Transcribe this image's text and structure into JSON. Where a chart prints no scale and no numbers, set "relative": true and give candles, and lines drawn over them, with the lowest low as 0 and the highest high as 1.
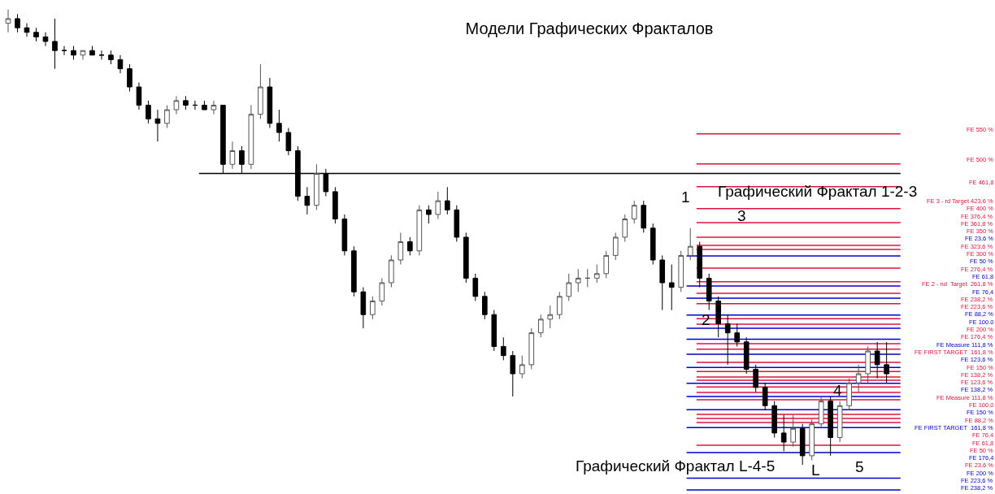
{
  "chart_data": {
    "type": "candlestick",
    "title": "Модели Графических Фракталов",
    "relative": true,
    "categories": [
      null,
      null,
      null,
      null,
      null,
      null,
      null,
      null,
      null,
      null,
      null,
      null,
      null,
      null,
      null,
      null,
      null,
      null,
      null,
      null,
      null,
      null,
      null,
      null,
      null,
      null,
      null,
      null,
      null,
      null,
      null,
      null,
      null,
      null,
      null,
      null,
      null,
      null,
      null,
      null,
      null,
      null,
      null,
      null,
      null,
      null,
      null,
      null,
      null,
      null,
      null,
      null,
      null,
      null,
      null,
      null,
      null,
      null,
      null,
      null,
      null,
      null,
      null,
      null,
      null,
      null,
      null,
      null,
      null,
      null,
      null,
      null,
      null,
      null,
      null,
      null,
      null,
      null,
      null,
      null,
      null,
      null,
      null,
      null,
      null,
      null,
      null,
      null,
      null,
      null,
      null,
      null,
      null,
      null,
      null
    ],
    "ohlc": [
      [
        0.97,
        1.0,
        0.95,
        0.98
      ],
      [
        0.98,
        0.99,
        0.95,
        0.96
      ],
      [
        0.96,
        0.97,
        0.94,
        0.95
      ],
      [
        0.95,
        0.96,
        0.93,
        0.94
      ],
      [
        0.94,
        0.95,
        0.92,
        0.93
      ],
      [
        0.93,
        0.98,
        0.87,
        0.91
      ],
      [
        0.91,
        0.92,
        0.9,
        0.91
      ],
      [
        0.91,
        0.92,
        0.89,
        0.9
      ],
      [
        0.9,
        0.91,
        0.89,
        0.91
      ],
      [
        0.91,
        0.92,
        0.9,
        0.9
      ],
      [
        0.9,
        0.91,
        0.89,
        0.9
      ],
      [
        0.9,
        0.91,
        0.88,
        0.89
      ],
      [
        0.89,
        0.9,
        0.86,
        0.87
      ],
      [
        0.87,
        0.88,
        0.82,
        0.83
      ],
      [
        0.83,
        0.84,
        0.78,
        0.79
      ],
      [
        0.79,
        0.8,
        0.75,
        0.76
      ],
      [
        0.76,
        0.78,
        0.71,
        0.75
      ],
      [
        0.75,
        0.79,
        0.74,
        0.78
      ],
      [
        0.78,
        0.81,
        0.77,
        0.8
      ],
      [
        0.8,
        0.81,
        0.78,
        0.79
      ],
      [
        0.79,
        0.8,
        0.78,
        0.79
      ],
      [
        0.79,
        0.8,
        0.78,
        0.78
      ],
      [
        0.78,
        0.8,
        0.77,
        0.79
      ],
      [
        0.79,
        0.79,
        0.64,
        0.66
      ],
      [
        0.66,
        0.71,
        0.65,
        0.69
      ],
      [
        0.69,
        0.7,
        0.64,
        0.66
      ],
      [
        0.66,
        0.79,
        0.65,
        0.77
      ],
      [
        0.77,
        0.88,
        0.76,
        0.83
      ],
      [
        0.83,
        0.85,
        0.74,
        0.75
      ],
      [
        0.75,
        0.78,
        0.71,
        0.73
      ],
      [
        0.73,
        0.74,
        0.68,
        0.69
      ],
      [
        0.69,
        0.7,
        0.58,
        0.59
      ],
      [
        0.59,
        0.61,
        0.55,
        0.57
      ],
      [
        0.57,
        0.66,
        0.56,
        0.64
      ],
      [
        0.64,
        0.65,
        0.59,
        0.6
      ],
      [
        0.6,
        0.61,
        0.53,
        0.54
      ],
      [
        0.54,
        0.55,
        0.46,
        0.47
      ],
      [
        0.47,
        0.48,
        0.37,
        0.38
      ],
      [
        0.38,
        0.39,
        0.3,
        0.33
      ],
      [
        0.33,
        0.37,
        0.32,
        0.36
      ],
      [
        0.36,
        0.41,
        0.35,
        0.4
      ],
      [
        0.4,
        0.46,
        0.39,
        0.45
      ],
      [
        0.45,
        0.51,
        0.44,
        0.49
      ],
      [
        0.49,
        0.5,
        0.46,
        0.47
      ],
      [
        0.47,
        0.57,
        0.46,
        0.56
      ],
      [
        0.56,
        0.57,
        0.53,
        0.55
      ],
      [
        0.55,
        0.6,
        0.54,
        0.58
      ],
      [
        0.58,
        0.61,
        0.55,
        0.56
      ],
      [
        0.56,
        0.57,
        0.49,
        0.5
      ],
      [
        0.5,
        0.51,
        0.4,
        0.41
      ],
      [
        0.41,
        0.42,
        0.36,
        0.37
      ],
      [
        0.37,
        0.38,
        0.32,
        0.33
      ],
      [
        0.33,
        0.34,
        0.25,
        0.26
      ],
      [
        0.26,
        0.28,
        0.23,
        0.24
      ],
      [
        0.24,
        0.25,
        0.15,
        0.2
      ],
      [
        0.2,
        0.24,
        0.19,
        0.22
      ],
      [
        0.22,
        0.3,
        0.21,
        0.29
      ],
      [
        0.29,
        0.33,
        0.28,
        0.32
      ],
      [
        0.32,
        0.35,
        0.3,
        0.33
      ],
      [
        0.33,
        0.38,
        0.32,
        0.37
      ],
      [
        0.37,
        0.42,
        0.36,
        0.4
      ],
      [
        0.4,
        0.43,
        0.38,
        0.41
      ],
      [
        0.41,
        0.43,
        0.39,
        0.41
      ],
      [
        0.41,
        0.44,
        0.4,
        0.42
      ],
      [
        0.42,
        0.47,
        0.41,
        0.46
      ],
      [
        0.46,
        0.51,
        0.45,
        0.5
      ],
      [
        0.5,
        0.55,
        0.49,
        0.54
      ],
      [
        0.54,
        0.58,
        0.53,
        0.57
      ],
      [
        0.57,
        0.58,
        0.51,
        0.52
      ],
      [
        0.52,
        0.53,
        0.44,
        0.45
      ],
      [
        0.45,
        0.46,
        0.34,
        0.4
      ],
      [
        0.4,
        0.44,
        0.34,
        0.39
      ],
      [
        0.39,
        0.47,
        0.38,
        0.46
      ],
      [
        0.46,
        0.52,
        0.45,
        0.48
      ],
      [
        0.48,
        0.49,
        0.39,
        0.41
      ],
      [
        0.41,
        0.42,
        0.34,
        0.36
      ],
      [
        0.36,
        0.37,
        0.28,
        0.31
      ],
      [
        0.31,
        0.33,
        0.22,
        0.29
      ],
      [
        0.29,
        0.31,
        0.26,
        0.27
      ],
      [
        0.27,
        0.28,
        0.2,
        0.21
      ],
      [
        0.21,
        0.22,
        0.16,
        0.17
      ],
      [
        0.17,
        0.18,
        0.12,
        0.13
      ],
      [
        0.13,
        0.14,
        0.06,
        0.07
      ],
      [
        0.07,
        0.11,
        0.03,
        0.05
      ],
      [
        0.05,
        0.11,
        0.04,
        0.08
      ],
      [
        0.08,
        0.09,
        0.0,
        0.02
      ],
      [
        0.02,
        0.1,
        0.01,
        0.09
      ],
      [
        0.09,
        0.15,
        0.08,
        0.14
      ],
      [
        0.14,
        0.15,
        0.02,
        0.06
      ],
      [
        0.06,
        0.14,
        0.05,
        0.13
      ],
      [
        0.13,
        0.19,
        0.12,
        0.18
      ],
      [
        0.18,
        0.22,
        0.16,
        0.2
      ],
      [
        0.2,
        0.26,
        0.18,
        0.25
      ],
      [
        0.25,
        0.27,
        0.19,
        0.22
      ],
      [
        0.22,
        0.27,
        0.18,
        0.2
      ]
    ],
    "ref_lines": [
      {
        "axis": "y",
        "value": 0.727,
        "label": "FE 550 %",
        "color": "#dc143c"
      },
      {
        "axis": "y",
        "value": 0.661,
        "label": "FE 500 %",
        "color": "#dc143c"
      },
      {
        "axis": "y",
        "value": 0.611,
        "label": "FE 461,8",
        "color": "#dc143c"
      },
      {
        "axis": "y",
        "value": 0.563,
        "label": "FE 3 - rd Target 423,6 %",
        "color": "#dc143c"
      },
      {
        "axis": "y",
        "value": 0.532,
        "label": "FE 400 %",
        "color": "#dc143c"
      },
      {
        "axis": "y",
        "value": 0.5,
        "label": "FE 376,4 %",
        "color": "#dc143c"
      },
      {
        "axis": "y",
        "value": 0.482,
        "label": "FE 361,8 %",
        "color": "#dc143c"
      },
      {
        "axis": "y",
        "value": 0.473,
        "label": "FE 350 %",
        "color": "#dc143c"
      },
      {
        "axis": "y",
        "value": 0.432,
        "label": "FE 323,6 %",
        "color": "#dc143c"
      },
      {
        "axis": "y",
        "value": 0.402,
        "label": "FE 300 %",
        "color": "#dc143c"
      },
      {
        "axis": "y",
        "value": 0.377,
        "label": "FE 276,4 %",
        "color": "#dc143c"
      },
      {
        "axis": "y",
        "value": 0.354,
        "label": "FE 2 - nd  Target  261,8 %",
        "color": "#dc143c"
      },
      {
        "axis": "y",
        "value": 0.321,
        "label": "FE 238,2 %",
        "color": "#dc143c"
      },
      {
        "axis": "y",
        "value": 0.309,
        "label": "FE 223,6 %",
        "color": "#dc143c"
      },
      {
        "axis": "y",
        "value": 0.266,
        "label": "FE 200 %",
        "color": "#dc143c"
      },
      {
        "axis": "y",
        "value": 0.254,
        "label": "FE 176,4 %",
        "color": "#dc143c"
      },
      {
        "axis": "y",
        "value": 0.225,
        "label": "FE FIRST TARGET  161,8 %",
        "color": "#dc143c"
      },
      {
        "axis": "y",
        "value": 0.205,
        "label": "FE 150 %",
        "color": "#dc143c"
      },
      {
        "axis": "y",
        "value": 0.193,
        "label": "FE 138,2 %",
        "color": "#dc143c"
      },
      {
        "axis": "y",
        "value": 0.186,
        "label": "FE 123,6 %",
        "color": "#dc143c"
      },
      {
        "axis": "y",
        "value": 0.171,
        "label": "FE Measure 111,8 %",
        "color": "#dc143c"
      },
      {
        "axis": "y",
        "value": 0.159,
        "label": "FE 100,0",
        "color": "#dc143c"
      },
      {
        "axis": "y",
        "value": 0.143,
        "label": "FE 88,2 %",
        "color": "#dc143c"
      },
      {
        "axis": "y",
        "value": 0.111,
        "label": "FE 76,4",
        "color": "#dc143c"
      },
      {
        "axis": "y",
        "value": 0.102,
        "label": "FE 61,8",
        "color": "#dc143c"
      },
      {
        "axis": "y",
        "value": 0.093,
        "label": "FE 50 %",
        "color": "#dc143c"
      },
      {
        "axis": "y",
        "value": 0.043,
        "label": "FE 23,6 %",
        "color": "#dc143c"
      },
      {
        "axis": "y",
        "value": 0.459,
        "label": "FE 23,6 %",
        "color": "#0000cd"
      },
      {
        "axis": "y",
        "value": 0.393,
        "label": "FE 50 %",
        "color": "#0000cd"
      },
      {
        "axis": "y",
        "value": 0.366,
        "label": "FE 61,8",
        "color": "#0000cd"
      },
      {
        "axis": "y",
        "value": 0.329,
        "label": "FE 76,4",
        "color": "#0000cd"
      },
      {
        "axis": "y",
        "value": 0.3,
        "label": "FE 88,2 %",
        "color": "#0000cd"
      },
      {
        "axis": "y",
        "value": 0.276,
        "label": "FE 100.0",
        "color": "#0000cd"
      },
      {
        "axis": "y",
        "value": 0.243,
        "label": "FE Measure 111,8 %",
        "color": "#0000cd"
      },
      {
        "axis": "y",
        "value": 0.214,
        "label": "FE 123,6 %",
        "color": "#0000cd"
      },
      {
        "axis": "y",
        "value": 0.179,
        "label": "FE 138,2 %",
        "color": "#0000cd"
      },
      {
        "axis": "y",
        "value": 0.15,
        "label": "FE 150 %",
        "color": "#0000cd"
      },
      {
        "axis": "y",
        "value": 0.121,
        "label": "FE FIRST TARGET  161,8 %",
        "color": "#0000cd"
      },
      {
        "axis": "y",
        "value": 0.082,
        "label": "FE 176,4",
        "color": "#0000cd"
      },
      {
        "axis": "y",
        "value": 0.027,
        "label": "FE 200 %",
        "color": "#0000cd"
      },
      {
        "axis": "y",
        "value": -0.029,
        "label": "FE 223,6 %",
        "color": "#0000cd"
      },
      {
        "axis": "y",
        "value": -0.055,
        "label": "FE 238,2 %",
        "color": "#0000cd"
      },
      {
        "axis": "y",
        "value": 0.64,
        "color": "#000000"
      }
    ],
    "annotations": [
      "Графический Фрактал 1-2-3",
      "Графический Фрактал L-4-5",
      "1",
      "2",
      "3",
      "4",
      "5",
      "L"
    ]
  }
}
